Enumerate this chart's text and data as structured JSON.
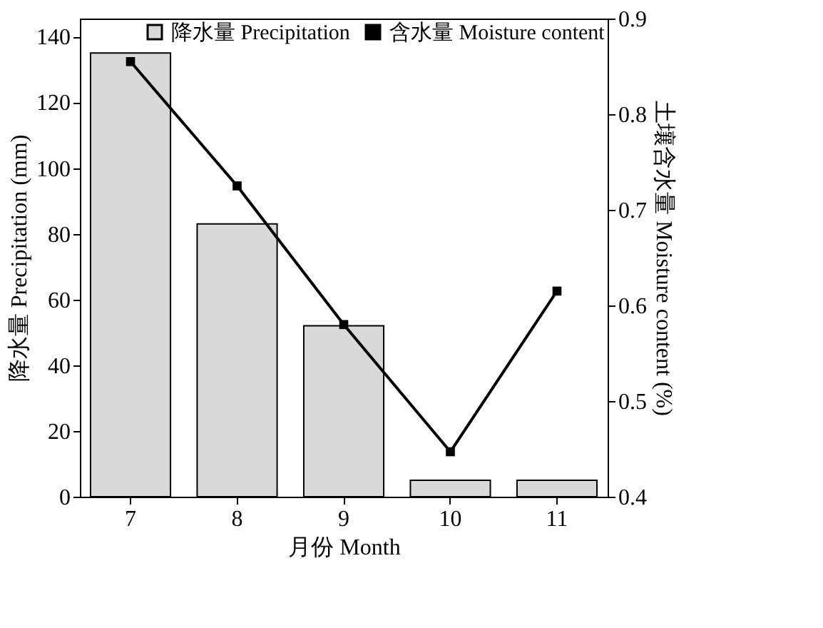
{
  "chart_data": {
    "type": "bar",
    "xlabel": "月份 Month",
    "ylabel": "降水量 Precipitation (mm)",
    "y2label": "土壤含水量 Moisture content (%)",
    "categories": [
      "7",
      "8",
      "9",
      "10",
      "11"
    ],
    "series": [
      {
        "name": "降水量 Precipitation",
        "color": "#d9d9d9",
        "values": [
          135,
          83,
          52,
          5,
          5
        ]
      },
      {
        "name": "含水量 Moisture content",
        "type": "line",
        "color": "#000000",
        "axis": "y2",
        "marker": "square",
        "values": [
          0.855,
          0.725,
          0.58,
          0.447,
          0.615
        ]
      }
    ],
    "ylim": [
      0,
      145.5
    ],
    "yticks": [
      0,
      20,
      40,
      60,
      80,
      100,
      120,
      140
    ],
    "y2lim": [
      0.4,
      0.9
    ],
    "y2ticks": [
      0.4,
      0.5,
      0.6,
      0.7,
      0.8,
      0.9
    ],
    "legend": "top right",
    "grid": false
  }
}
